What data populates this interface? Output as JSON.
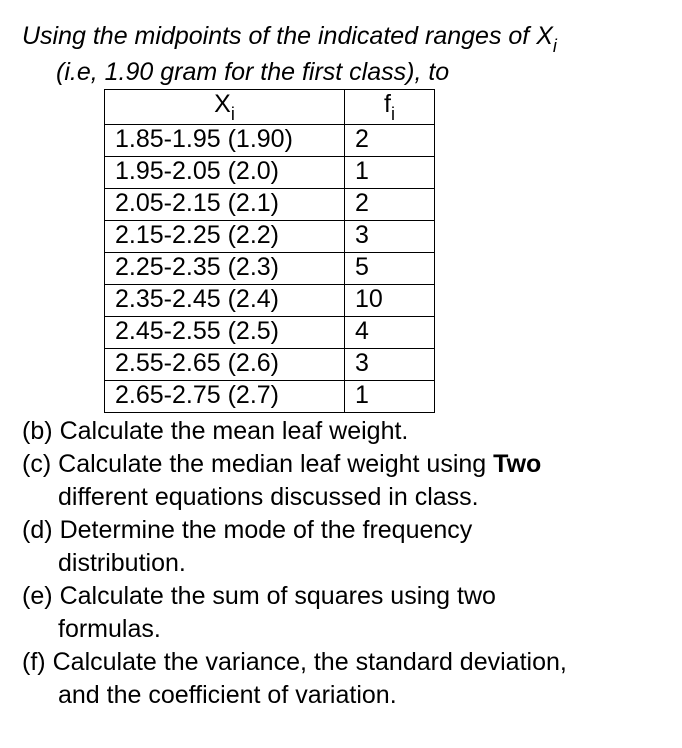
{
  "intro": {
    "line1_pre": "Using the midpoints of the indicated ranges of X",
    "line1_sub": "i",
    "line2": "(i.e, 1.90 gram for the first class), to"
  },
  "table": {
    "header_x": "X",
    "header_x_sub": "i",
    "header_f": "f",
    "header_f_sub": "i",
    "rows": [
      {
        "x": "1.85-1.95 (1.90)",
        "f": "2"
      },
      {
        "x": "1.95-2.05 (2.0)",
        "f": "1"
      },
      {
        "x": "2.05-2.15 (2.1)",
        "f": "2"
      },
      {
        "x": "2.15-2.25 (2.2)",
        "f": "3"
      },
      {
        "x": "2.25-2.35 (2.3)",
        "f": "5"
      },
      {
        "x": "2.35-2.45 (2.4)",
        "f": "10"
      },
      {
        "x": "2.45-2.55 (2.5)",
        "f": "4"
      },
      {
        "x": "2.55-2.65 (2.6)",
        "f": "3"
      },
      {
        "x": "2.65-2.75 (2.7)",
        "f": "1"
      }
    ]
  },
  "questions": {
    "b": {
      "label": "(b)",
      "text": "Calculate the mean leaf weight."
    },
    "c": {
      "label": "(c)",
      "text1": "Calculate the median leaf weight using ",
      "bold": "Two",
      "cont": "different equations discussed in class."
    },
    "d": {
      "label": "(d)",
      "text": "Determine the mode of the frequency",
      "cont": "distribution."
    },
    "e": {
      "label": "(e)",
      "text": "Calculate the sum of squares using two",
      "cont": "formulas."
    },
    "f": {
      "label": "(f)",
      "text": "Calculate the variance, the standard deviation,",
      "cont": "and the coefficient of variation."
    }
  }
}
